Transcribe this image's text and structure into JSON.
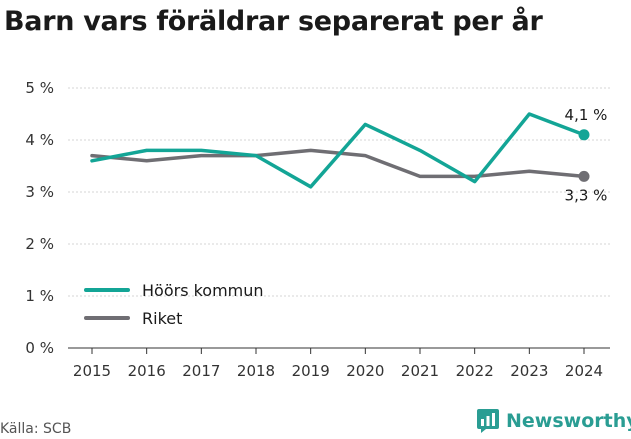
{
  "title": "Barn vars föräldrar separerat per år",
  "source": "Källa: SCB",
  "brand": {
    "name": "Newsworthy",
    "icon": "newsworthy-logo-icon",
    "color": "#2a9d93"
  },
  "chart_data": {
    "type": "line",
    "title": "Barn vars föräldrar separerat per år",
    "x": [
      "2015",
      "2016",
      "2017",
      "2018",
      "2019",
      "2020",
      "2021",
      "2022",
      "2023",
      "2024"
    ],
    "series": [
      {
        "name": "Höörs kommun",
        "color": "#13a596",
        "values": [
          3.6,
          3.8,
          3.8,
          3.7,
          3.1,
          4.3,
          3.8,
          3.2,
          4.5,
          4.1
        ],
        "end_label": "4,1 %"
      },
      {
        "name": "Riket",
        "color": "#6f6e73",
        "values": [
          3.7,
          3.6,
          3.7,
          3.7,
          3.8,
          3.7,
          3.3,
          3.3,
          3.4,
          3.3
        ],
        "end_label": "3,3 %"
      }
    ],
    "ylim": [
      0,
      5
    ],
    "yticks": [
      0,
      1,
      2,
      3,
      4,
      5
    ],
    "ytick_labels": [
      "0 %",
      "1 %",
      "2 %",
      "3 %",
      "4 %",
      "5 %"
    ],
    "xlabel": "",
    "ylabel": "",
    "grid": "horizontal dashed",
    "legend_position": "bottom-left"
  }
}
